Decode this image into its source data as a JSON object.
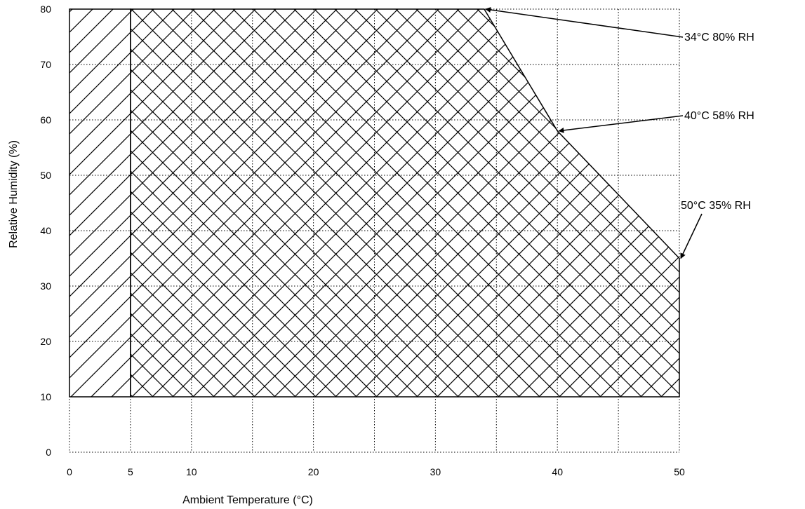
{
  "chart_data": {
    "type": "area",
    "xlabel": "Ambient Temperature (°C)",
    "ylabel": "Relative Humidity (%)",
    "xlim": [
      0,
      50
    ],
    "ylim": [
      0,
      80
    ],
    "x_ticks": [
      0,
      5,
      10,
      20,
      30,
      40,
      50
    ],
    "y_ticks": [
      0,
      10,
      20,
      30,
      40,
      50,
      60,
      70,
      80
    ],
    "grid": true,
    "grid_x": [
      5,
      10,
      15,
      20,
      25,
      30,
      35,
      40,
      45,
      50
    ],
    "grid_y": [
      10,
      20,
      30,
      40,
      50,
      60,
      70,
      80
    ],
    "regions": [
      {
        "pattern": "single-hatch",
        "polygon": [
          [
            0,
            10
          ],
          [
            5,
            10
          ],
          [
            5,
            80
          ],
          [
            0,
            80
          ]
        ]
      },
      {
        "pattern": "cross-hatch",
        "polygon": [
          [
            5,
            10
          ],
          [
            50,
            10
          ],
          [
            50,
            35
          ],
          [
            40,
            58
          ],
          [
            34,
            80
          ],
          [
            5,
            80
          ]
        ]
      }
    ],
    "annotations": [
      {
        "text": "34°C 80% RH",
        "x": 34,
        "y": 80
      },
      {
        "text": "40°C 58% RH",
        "x": 40,
        "y": 58
      },
      {
        "text": "50°C 35% RH",
        "x": 50,
        "y": 35
      }
    ]
  }
}
